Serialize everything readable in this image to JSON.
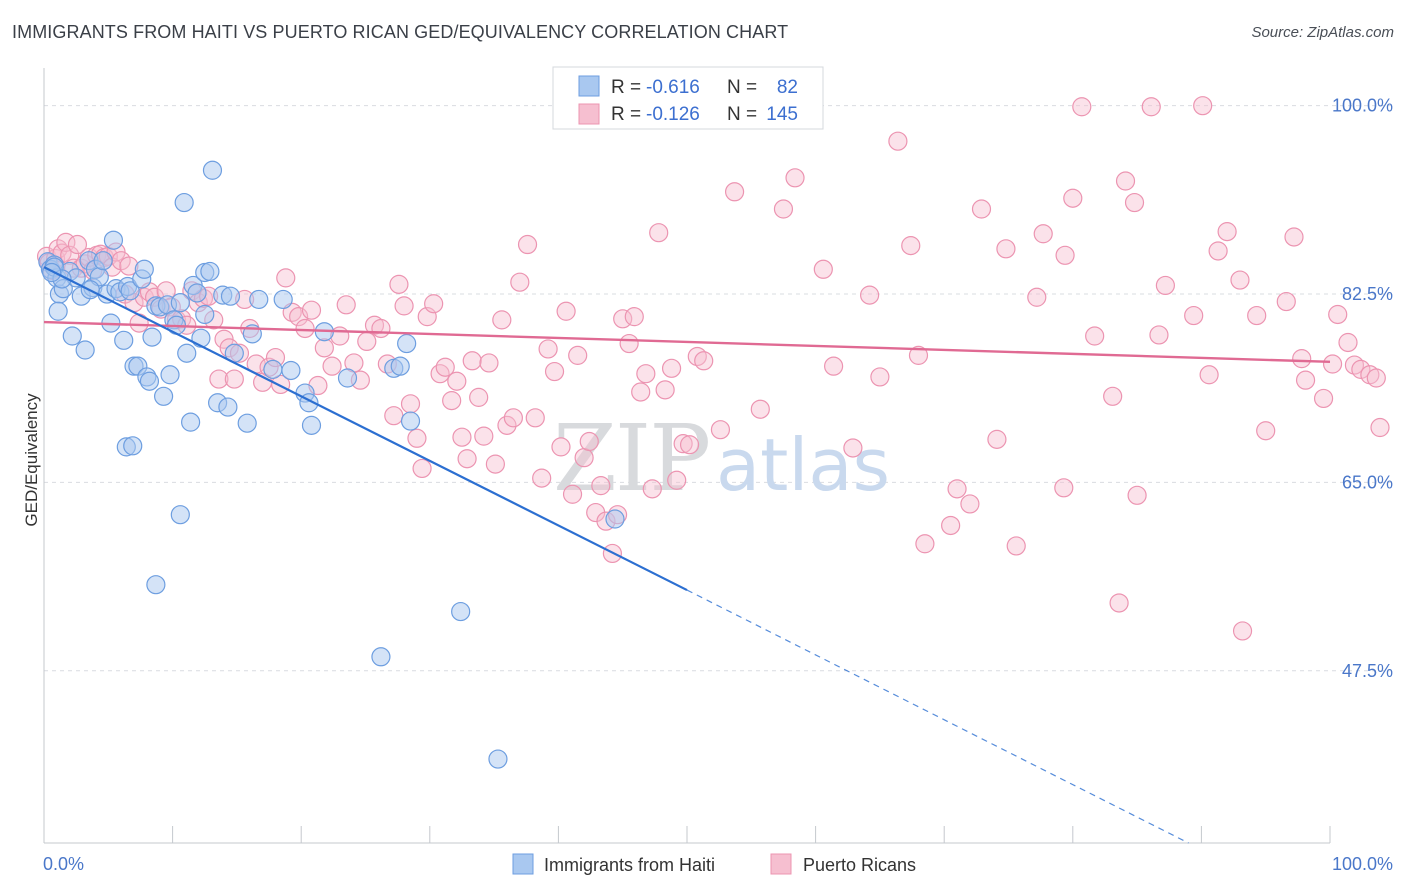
{
  "header": {
    "title": "IMMIGRANTS FROM HAITI VS PUERTO RICAN GED/EQUIVALENCY CORRELATION CHART",
    "source": "Source: ZipAtlas.com"
  },
  "colors": {
    "haiti_fill": "#a9c8f0",
    "haiti_stroke": "#6d9ee0",
    "haiti_line": "#2c6fd1",
    "pr_fill": "#f6bfd0",
    "pr_stroke": "#ec94b1",
    "pr_line": "#e06a93",
    "tick_text": "#4a77c9",
    "grid": "#d9dce1"
  },
  "stats": {
    "haiti": {
      "r_label": "R =",
      "r_value": "-0.616",
      "n_label": "N =",
      "n_value": "82"
    },
    "pr": {
      "r_label": "R =",
      "r_value": "-0.126",
      "n_label": "N =",
      "n_value": "145"
    }
  },
  "watermark": {
    "zip": "ZIP",
    "atlas": "atlas"
  },
  "chart_data": {
    "type": "scatter",
    "title": "IMMIGRANTS FROM HAITI VS PUERTO RICAN GED/EQUIVALENCY CORRELATION CHART",
    "xlabel": "",
    "ylabel": "GED/Equivalency",
    "xlim": [
      0,
      100
    ],
    "ylim": [
      31.5,
      103.5
    ],
    "y_ticks": [
      47.5,
      65.0,
      82.5,
      100.0
    ],
    "y_tick_labels": [
      "47.5%",
      "65.0%",
      "82.5%",
      "100.0%"
    ],
    "x_tick_labels": [
      "0.0%",
      "100.0%"
    ],
    "grid": true,
    "legend": [
      "Immigrants from Haiti",
      "Puerto Ricans"
    ],
    "series": [
      {
        "name": "Immigrants from Haiti",
        "trend": {
          "x0": 0,
          "y0": 85.0,
          "x1": 50,
          "y1": 55.0,
          "dashed_to_x": 89,
          "dashed_to_y": 31.5
        },
        "points": [
          [
            0.3,
            85.5
          ],
          [
            0.5,
            84.8
          ],
          [
            0.8,
            85.2
          ],
          [
            1.0,
            84.0
          ],
          [
            1.2,
            82.5
          ],
          [
            1.5,
            83.0
          ],
          [
            1.1,
            80.9
          ],
          [
            2.0,
            84.6
          ],
          [
            2.2,
            78.6
          ],
          [
            2.5,
            84.0
          ],
          [
            2.9,
            82.3
          ],
          [
            3.2,
            77.3
          ],
          [
            3.5,
            85.6
          ],
          [
            3.8,
            83.1
          ],
          [
            4.0,
            84.8
          ],
          [
            4.3,
            84.1
          ],
          [
            4.6,
            85.6
          ],
          [
            4.9,
            82.5
          ],
          [
            5.2,
            79.8
          ],
          [
            5.4,
            87.5
          ],
          [
            5.6,
            83.0
          ],
          [
            5.9,
            82.7
          ],
          [
            6.2,
            78.2
          ],
          [
            6.5,
            83.2
          ],
          [
            6.7,
            82.8
          ],
          [
            7.0,
            75.8
          ],
          [
            7.3,
            75.8
          ],
          [
            7.6,
            83.9
          ],
          [
            7.8,
            84.8
          ],
          [
            8.0,
            74.8
          ],
          [
            8.2,
            74.4
          ],
          [
            8.4,
            78.5
          ],
          [
            8.7,
            81.4
          ],
          [
            9.0,
            81.3
          ],
          [
            9.3,
            73.0
          ],
          [
            9.6,
            81.5
          ],
          [
            9.8,
            75.0
          ],
          [
            10.1,
            80.1
          ],
          [
            10.3,
            79.6
          ],
          [
            10.6,
            81.7
          ],
          [
            10.9,
            91.0
          ],
          [
            11.1,
            77.0
          ],
          [
            11.4,
            70.6
          ],
          [
            11.6,
            83.3
          ],
          [
            11.9,
            82.6
          ],
          [
            12.2,
            78.4
          ],
          [
            12.5,
            84.5
          ],
          [
            12.9,
            84.6
          ],
          [
            13.1,
            94.0
          ],
          [
            13.5,
            72.4
          ],
          [
            13.9,
            82.4
          ],
          [
            14.3,
            72.0
          ],
          [
            14.8,
            77.0
          ],
          [
            15.8,
            70.5
          ],
          [
            16.2,
            78.8
          ],
          [
            16.7,
            82.0
          ],
          [
            17.8,
            75.5
          ],
          [
            18.6,
            82.0
          ],
          [
            19.2,
            75.4
          ],
          [
            20.3,
            73.3
          ],
          [
            20.6,
            72.4
          ],
          [
            20.8,
            70.3
          ],
          [
            21.8,
            79.0
          ],
          [
            23.6,
            74.7
          ],
          [
            27.2,
            75.6
          ],
          [
            27.7,
            75.8
          ],
          [
            28.2,
            77.9
          ],
          [
            28.5,
            70.7
          ],
          [
            6.4,
            68.3
          ],
          [
            6.9,
            68.4
          ],
          [
            10.6,
            62.0
          ],
          [
            8.7,
            55.5
          ],
          [
            12.5,
            80.6
          ],
          [
            14.5,
            82.3
          ],
          [
            26.2,
            48.8
          ],
          [
            32.4,
            53.0
          ],
          [
            35.3,
            39.3
          ],
          [
            44.4,
            61.6
          ],
          [
            0.8,
            85.0
          ],
          [
            1.4,
            83.9
          ],
          [
            0.6,
            84.5
          ],
          [
            3.6,
            82.9
          ]
        ]
      },
      {
        "name": "Puerto Ricans",
        "trend": {
          "x0": 0,
          "y0": 79.9,
          "x1": 100,
          "y1": 76.2
        },
        "points": [
          [
            0.2,
            86.0
          ],
          [
            0.4,
            85.4
          ],
          [
            0.6,
            84.7
          ],
          [
            0.9,
            85.8
          ],
          [
            1.1,
            86.7
          ],
          [
            1.4,
            86.3
          ],
          [
            1.7,
            87.3
          ],
          [
            2.0,
            86.1
          ],
          [
            2.3,
            84.9
          ],
          [
            2.6,
            87.1
          ],
          [
            2.9,
            84.9
          ],
          [
            3.2,
            85.3
          ],
          [
            3.5,
            85.9
          ],
          [
            3.8,
            84.7
          ],
          [
            4.1,
            86.1
          ],
          [
            4.4,
            86.2
          ],
          [
            4.7,
            85.9
          ],
          [
            5.0,
            86.0
          ],
          [
            5.3,
            85.0
          ],
          [
            5.6,
            86.4
          ],
          [
            6.0,
            85.6
          ],
          [
            6.3,
            82.5
          ],
          [
            6.6,
            85.1
          ],
          [
            7.0,
            81.7
          ],
          [
            7.4,
            79.8
          ],
          [
            7.8,
            82.2
          ],
          [
            8.2,
            82.7
          ],
          [
            8.6,
            82.2
          ],
          [
            9.1,
            81.1
          ],
          [
            9.5,
            82.8
          ],
          [
            9.9,
            81.3
          ],
          [
            10.3,
            80.1
          ],
          [
            10.7,
            80.2
          ],
          [
            11.1,
            79.6
          ],
          [
            11.5,
            82.8
          ],
          [
            12.0,
            81.7
          ],
          [
            12.4,
            82.1
          ],
          [
            12.8,
            82.3
          ],
          [
            13.2,
            80.1
          ],
          [
            13.6,
            74.6
          ],
          [
            14.0,
            78.3
          ],
          [
            14.4,
            77.5
          ],
          [
            14.8,
            74.6
          ],
          [
            15.2,
            77.0
          ],
          [
            15.6,
            82.0
          ],
          [
            16.0,
            79.3
          ],
          [
            16.5,
            76.0
          ],
          [
            17.0,
            74.3
          ],
          [
            17.5,
            75.7
          ],
          [
            18.0,
            76.6
          ],
          [
            18.4,
            74.1
          ],
          [
            18.8,
            84.0
          ],
          [
            19.3,
            80.8
          ],
          [
            19.8,
            80.4
          ],
          [
            20.3,
            79.3
          ],
          [
            20.8,
            81.0
          ],
          [
            21.3,
            74.0
          ],
          [
            21.8,
            77.5
          ],
          [
            22.4,
            75.8
          ],
          [
            23.0,
            78.6
          ],
          [
            23.5,
            81.5
          ],
          [
            24.1,
            76.1
          ],
          [
            24.6,
            74.5
          ],
          [
            25.1,
            78.1
          ],
          [
            25.7,
            79.6
          ],
          [
            26.2,
            79.3
          ],
          [
            26.7,
            76.0
          ],
          [
            27.2,
            71.2
          ],
          [
            27.6,
            83.4
          ],
          [
            28.0,
            81.4
          ],
          [
            28.5,
            72.3
          ],
          [
            29.0,
            69.1
          ],
          [
            29.4,
            66.3
          ],
          [
            29.8,
            80.4
          ],
          [
            30.3,
            81.6
          ],
          [
            30.8,
            75.1
          ],
          [
            31.2,
            75.7
          ],
          [
            31.7,
            72.6
          ],
          [
            32.1,
            74.4
          ],
          [
            32.5,
            69.2
          ],
          [
            32.9,
            67.2
          ],
          [
            33.3,
            76.3
          ],
          [
            33.8,
            72.9
          ],
          [
            34.2,
            69.3
          ],
          [
            34.6,
            76.1
          ],
          [
            35.1,
            66.7
          ],
          [
            35.6,
            80.1
          ],
          [
            36.0,
            70.3
          ],
          [
            36.5,
            71.0
          ],
          [
            37.0,
            83.6
          ],
          [
            37.6,
            87.1
          ],
          [
            38.2,
            71.0
          ],
          [
            38.7,
            65.4
          ],
          [
            39.2,
            77.4
          ],
          [
            39.7,
            75.3
          ],
          [
            40.2,
            68.3
          ],
          [
            40.6,
            80.9
          ],
          [
            41.1,
            63.9
          ],
          [
            41.5,
            76.8
          ],
          [
            42.0,
            67.3
          ],
          [
            42.4,
            68.8
          ],
          [
            42.9,
            62.2
          ],
          [
            43.3,
            64.7
          ],
          [
            43.7,
            61.4
          ],
          [
            44.2,
            58.4
          ],
          [
            44.6,
            62.0
          ],
          [
            45.0,
            80.2
          ],
          [
            45.5,
            77.9
          ],
          [
            45.9,
            80.4
          ],
          [
            46.4,
            73.4
          ],
          [
            46.8,
            75.1
          ],
          [
            47.3,
            64.4
          ],
          [
            47.8,
            88.2
          ],
          [
            48.3,
            73.6
          ],
          [
            48.8,
            75.6
          ],
          [
            49.2,
            65.2
          ],
          [
            49.7,
            68.6
          ],
          [
            50.2,
            68.5
          ],
          [
            50.8,
            76.7
          ],
          [
            51.3,
            76.3
          ],
          [
            52.6,
            69.9
          ],
          [
            53.7,
            92.0
          ],
          [
            55.7,
            71.8
          ],
          [
            57.5,
            90.4
          ],
          [
            58.4,
            93.3
          ],
          [
            60.6,
            84.8
          ],
          [
            61.4,
            75.8
          ],
          [
            62.9,
            68.2
          ],
          [
            64.2,
            82.4
          ],
          [
            65.0,
            74.8
          ],
          [
            66.4,
            96.7
          ],
          [
            67.4,
            87.0
          ],
          [
            68.5,
            59.3
          ],
          [
            70.5,
            61.0
          ],
          [
            71.0,
            64.4
          ],
          [
            72.9,
            90.4
          ],
          [
            74.8,
            86.7
          ],
          [
            74.1,
            69.0
          ],
          [
            75.6,
            59.1
          ],
          [
            77.2,
            82.2
          ],
          [
            79.4,
            86.1
          ],
          [
            80.0,
            91.4
          ],
          [
            81.7,
            78.6
          ],
          [
            83.1,
            73.0
          ],
          [
            84.1,
            93.0
          ],
          [
            84.8,
            91.0
          ],
          [
            86.7,
            78.7
          ],
          [
            87.2,
            83.3
          ],
          [
            89.4,
            80.5
          ],
          [
            90.6,
            75.0
          ],
          [
            91.3,
            86.5
          ],
          [
            92.0,
            88.3
          ],
          [
            93.0,
            83.8
          ],
          [
            94.3,
            80.5
          ],
          [
            95.0,
            69.8
          ],
          [
            96.6,
            81.8
          ],
          [
            97.2,
            87.8
          ],
          [
            97.8,
            76.5
          ],
          [
            98.1,
            74.5
          ],
          [
            99.5,
            72.8
          ],
          [
            100.2,
            76.0
          ],
          [
            100.6,
            80.6
          ],
          [
            101.4,
            78.0
          ],
          [
            101.9,
            75.9
          ],
          [
            102.4,
            75.5
          ],
          [
            103.1,
            75.0
          ],
          [
            103.6,
            74.7
          ],
          [
            103.9,
            70.1
          ],
          [
            85.0,
            63.8
          ],
          [
            77.7,
            88.1
          ],
          [
            72.0,
            63.0
          ],
          [
            68.0,
            76.8
          ],
          [
            79.3,
            64.5
          ],
          [
            83.6,
            53.8
          ],
          [
            93.2,
            51.2
          ],
          [
            86.1,
            99.9
          ],
          [
            90.1,
            100.0
          ],
          [
            80.7,
            99.9
          ]
        ]
      }
    ]
  },
  "legend": {
    "haiti_label": "Immigrants from Haiti",
    "pr_label": "Puerto Ricans"
  }
}
